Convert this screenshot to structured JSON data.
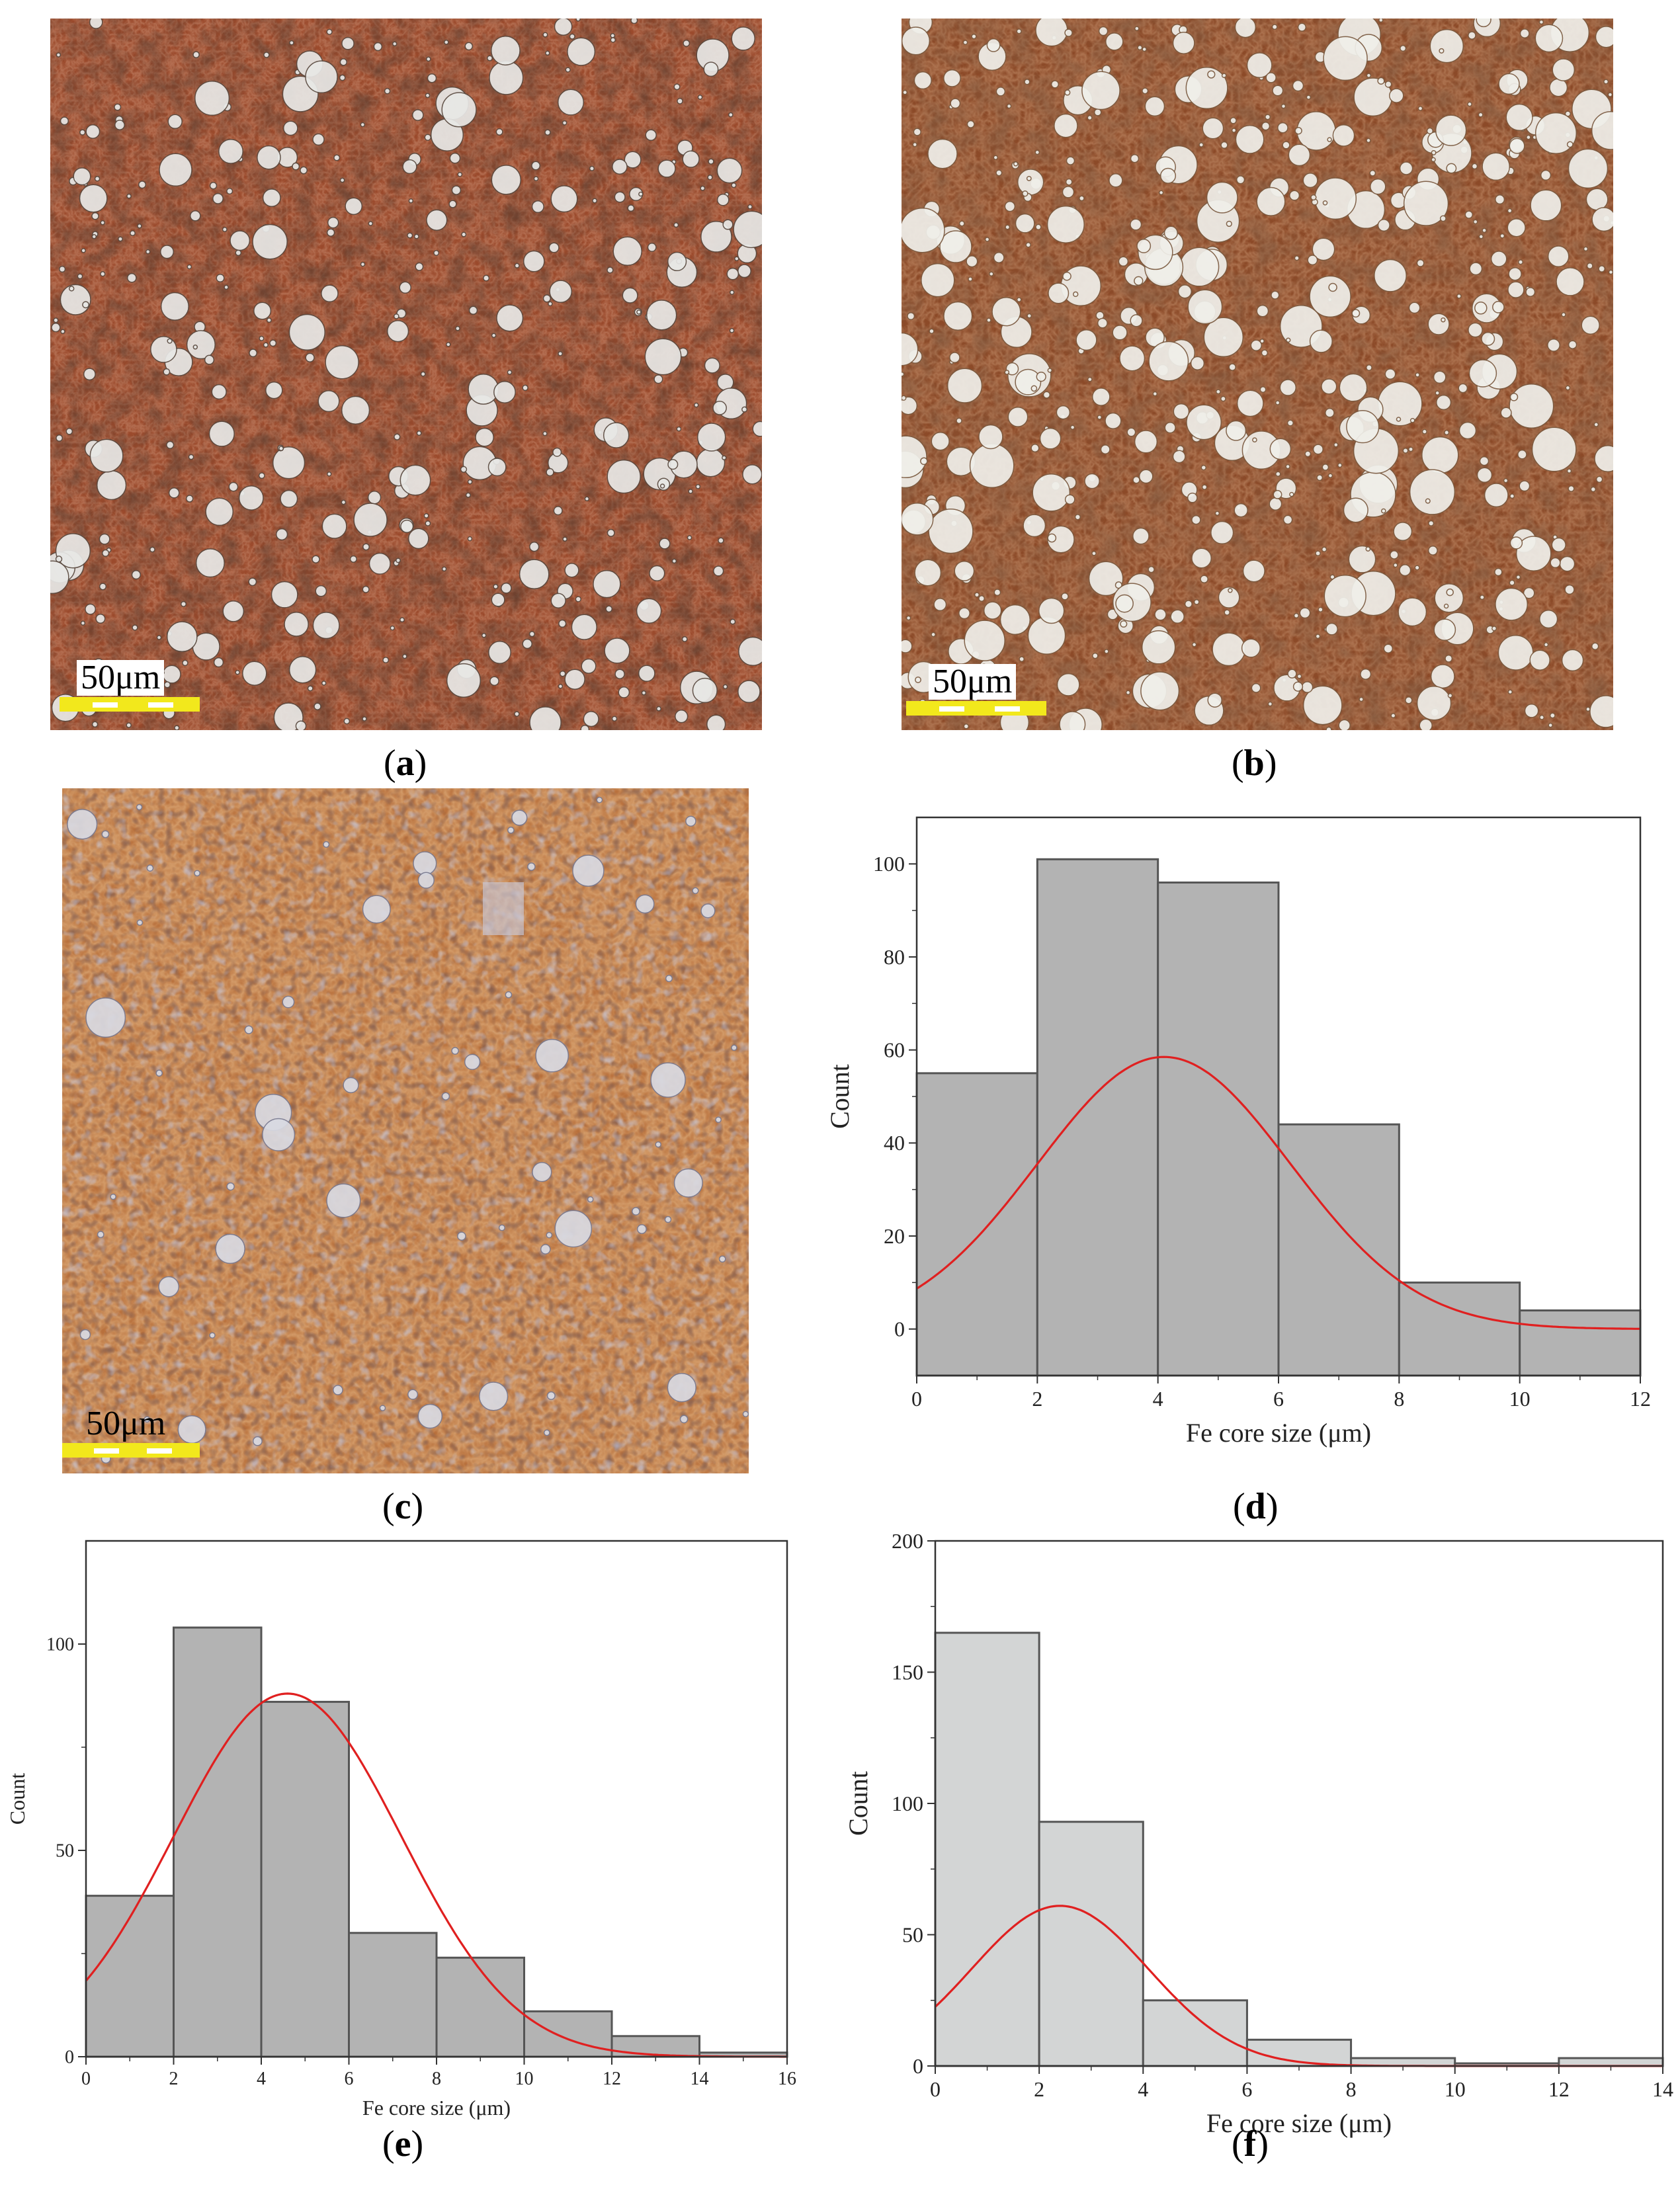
{
  "panels": {
    "a": {
      "label": "a",
      "scale_text": "50μm"
    },
    "b": {
      "label": "b",
      "scale_text": "50μm"
    },
    "c": {
      "label": "c",
      "scale_text": "50μm"
    },
    "d": {
      "label": "d"
    },
    "e": {
      "label": "e"
    },
    "f": {
      "label": "f"
    }
  },
  "colors": {
    "matrix_dark": "#5a2a18",
    "matrix_mid": "#9a4a2a",
    "matrix_light": "#c07048",
    "bar_fill_d_e": "#b3b3b3",
    "bar_fill_f": "#d3d5d5",
    "fit_curve": "#e02020",
    "scale_bar": "#f2e81c"
  },
  "chart_data": [
    {
      "panel": "d",
      "type": "bar",
      "bins": [
        [
          0,
          2
        ],
        [
          2,
          4
        ],
        [
          4,
          6
        ],
        [
          6,
          8
        ],
        [
          8,
          10
        ],
        [
          10,
          12
        ]
      ],
      "values": [
        55,
        101,
        96,
        44,
        10,
        4
      ],
      "fit": {
        "type": "gaussian",
        "peak_x": 4.1,
        "peak_y": 58.5,
        "sigma": 2.1
      },
      "xlabel": "Fe core size (μm)",
      "ylabel": "Count",
      "xlim": [
        0,
        12
      ],
      "ylim": [
        -10,
        110
      ],
      "xticks": [
        0,
        2,
        4,
        6,
        8,
        10,
        12
      ],
      "yticks": [
        0,
        20,
        40,
        60,
        80,
        100
      ]
    },
    {
      "panel": "e",
      "type": "bar",
      "bins": [
        [
          0,
          2
        ],
        [
          2,
          4
        ],
        [
          4,
          6
        ],
        [
          6,
          8
        ],
        [
          8,
          10
        ],
        [
          10,
          12
        ],
        [
          12,
          14
        ],
        [
          14,
          16
        ]
      ],
      "values": [
        39,
        104,
        86,
        30,
        24,
        11,
        5,
        1
      ],
      "fit": {
        "type": "gaussian",
        "peak_x": 4.6,
        "peak_y": 88,
        "sigma": 2.6
      },
      "xlabel": "Fe core size (μm)",
      "ylabel": "Count",
      "xlim": [
        0,
        16
      ],
      "ylim": [
        0,
        125
      ],
      "xticks": [
        0,
        2,
        4,
        6,
        8,
        10,
        12,
        14,
        16
      ],
      "yticks": [
        0,
        50,
        100
      ]
    },
    {
      "panel": "f",
      "type": "bar",
      "bins": [
        [
          0,
          2
        ],
        [
          2,
          4
        ],
        [
          4,
          6
        ],
        [
          6,
          8
        ],
        [
          8,
          10
        ],
        [
          10,
          12
        ],
        [
          12,
          14
        ]
      ],
      "values": [
        165,
        93,
        25,
        10,
        3,
        1,
        3
      ],
      "fit": {
        "type": "gaussian",
        "peak_x": 2.4,
        "peak_y": 61,
        "sigma": 1.7
      },
      "xlabel": "Fe core size (μm)",
      "ylabel": "Count",
      "xlim": [
        0,
        14
      ],
      "ylim": [
        0,
        200
      ],
      "xticks": [
        0,
        2,
        4,
        6,
        8,
        10,
        12,
        14
      ],
      "yticks": [
        0,
        50,
        100,
        150,
        200
      ]
    }
  ]
}
